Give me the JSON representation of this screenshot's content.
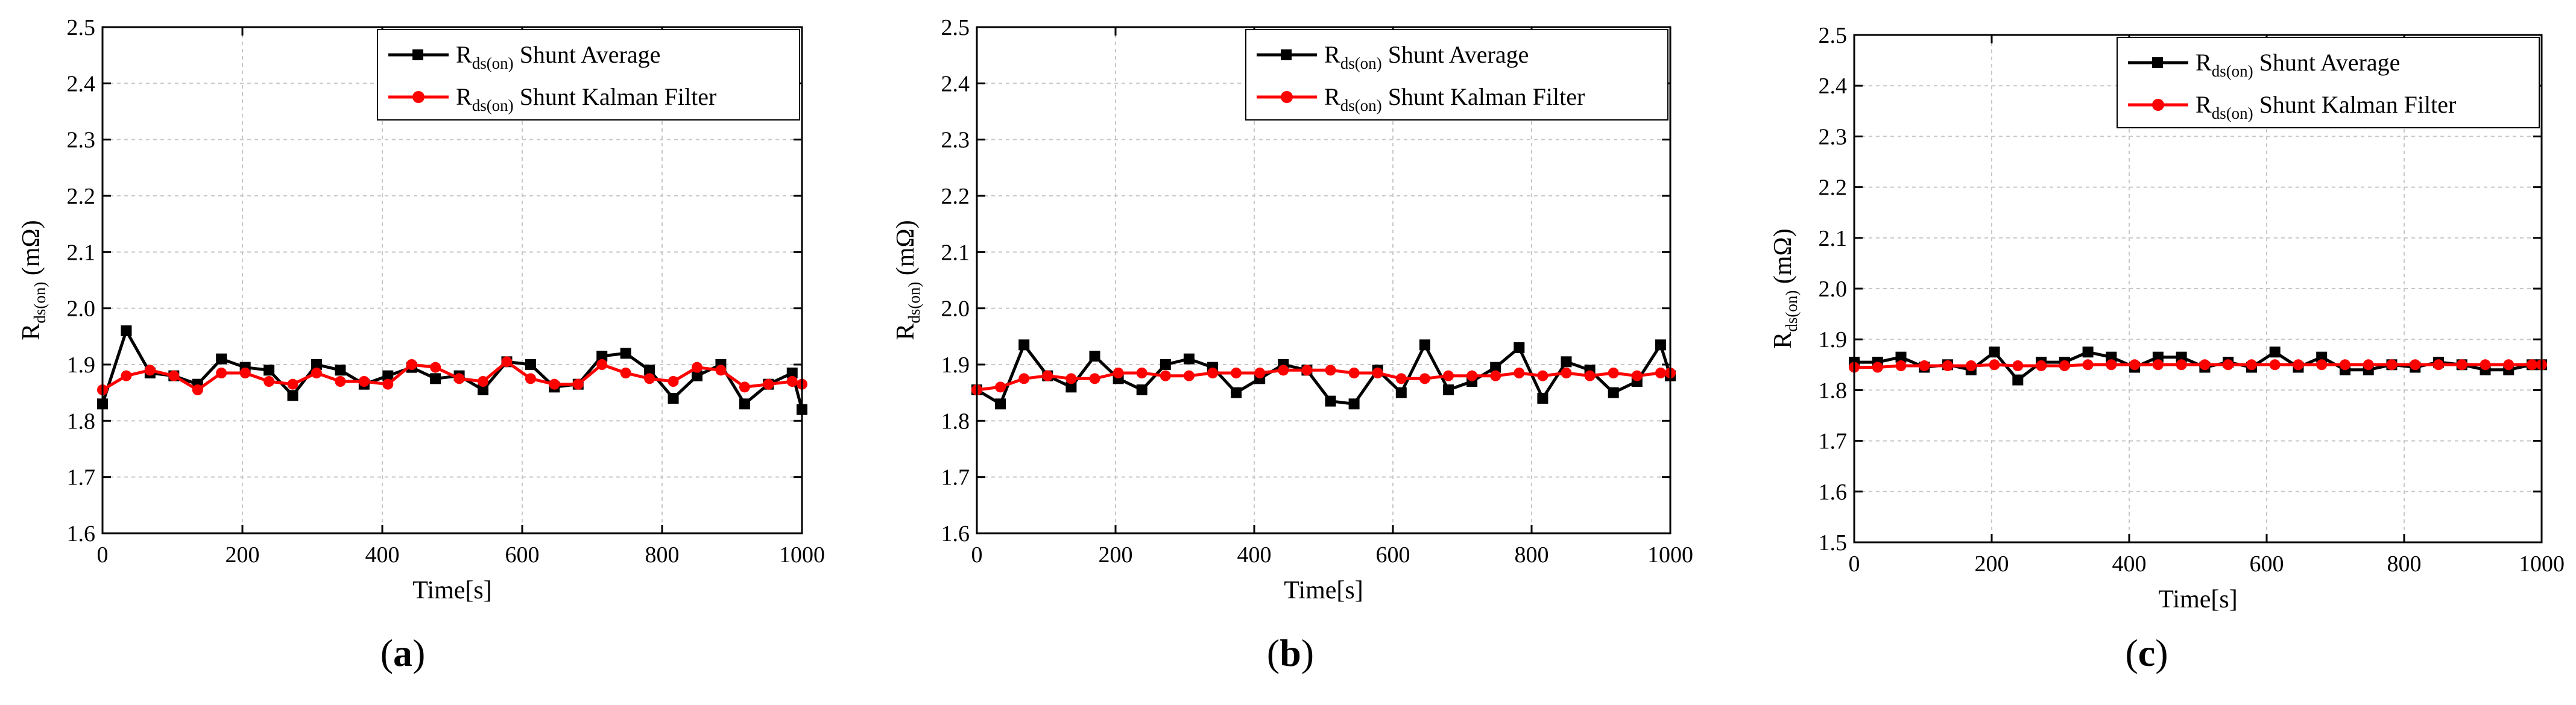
{
  "figure": {
    "colors": {
      "average": "#000000",
      "kalman": "#ff0000",
      "grid": "#c8c8c8"
    },
    "legend": {
      "entries": [
        {
          "symbol": "R",
          "subscript": "ds(on)",
          "text": " Shunt Average",
          "series": "average"
        },
        {
          "symbol": "R",
          "subscript": "ds(on)",
          "text": " Shunt Kalman Filter",
          "series": "kalman"
        }
      ]
    }
  },
  "chart_data": [
    {
      "type": "line",
      "panel_label": "a",
      "title": "",
      "xlabel": "Time[s]",
      "ylabel": {
        "symbol": "R",
        "subscript": "ds(on)",
        "unit": " (mΩ)"
      },
      "xlim": [
        0,
        1000
      ],
      "ylim": [
        1.6,
        2.5
      ],
      "xticks": [
        "0",
        "200",
        "400",
        "600",
        "800",
        "1000"
      ],
      "yticks": [
        "1.6",
        "1.7",
        "1.8",
        "1.9",
        "2.0",
        "2.1",
        "2.2",
        "2.3",
        "2.4",
        "2.5"
      ],
      "grid": true,
      "legend_position": "top-right",
      "series": [
        {
          "name": "Rds(on) Shunt Average",
          "marker": "square",
          "x": [
            0,
            34,
            68,
            102,
            136,
            170,
            204,
            238,
            272,
            306,
            340,
            374,
            408,
            442,
            476,
            510,
            544,
            578,
            612,
            646,
            680,
            714,
            748,
            782,
            816,
            850,
            884,
            918,
            952,
            986,
            1000
          ],
          "y": [
            1.83,
            1.96,
            1.885,
            1.88,
            1.865,
            1.91,
            1.895,
            1.89,
            1.845,
            1.9,
            1.89,
            1.865,
            1.88,
            1.895,
            1.875,
            1.88,
            1.855,
            1.905,
            1.9,
            1.86,
            1.865,
            1.915,
            1.92,
            1.89,
            1.84,
            1.88,
            1.9,
            1.83,
            1.865,
            1.885,
            1.82
          ]
        },
        {
          "name": "Rds(on) Shunt Kalman Filter",
          "marker": "circle",
          "x": [
            0,
            34,
            68,
            102,
            136,
            170,
            204,
            238,
            272,
            306,
            340,
            374,
            408,
            442,
            476,
            510,
            544,
            578,
            612,
            646,
            680,
            714,
            748,
            782,
            816,
            850,
            884,
            918,
            952,
            986,
            1000
          ],
          "y": [
            1.855,
            1.88,
            1.89,
            1.88,
            1.855,
            1.885,
            1.885,
            1.87,
            1.865,
            1.885,
            1.87,
            1.87,
            1.865,
            1.9,
            1.895,
            1.875,
            1.87,
            1.905,
            1.875,
            1.865,
            1.865,
            1.9,
            1.885,
            1.875,
            1.87,
            1.895,
            1.89,
            1.86,
            1.865,
            1.87,
            1.865
          ]
        }
      ]
    },
    {
      "type": "line",
      "panel_label": "b",
      "title": "",
      "xlabel": "Time[s]",
      "ylabel": {
        "symbol": "R",
        "subscript": "ds(on)",
        "unit": " (mΩ)"
      },
      "xlim": [
        0,
        1000
      ],
      "ylim": [
        1.6,
        2.5
      ],
      "xticks": [
        "0",
        "200",
        "400",
        "600",
        "800",
        "1000"
      ],
      "yticks": [
        "1.6",
        "1.7",
        "1.8",
        "1.9",
        "2.0",
        "2.1",
        "2.2",
        "2.3",
        "2.4",
        "2.5"
      ],
      "grid": true,
      "legend_position": "top-right",
      "series": [
        {
          "name": "Rds(on) Shunt Average",
          "marker": "square",
          "x": [
            0,
            34,
            68,
            102,
            136,
            170,
            204,
            238,
            272,
            306,
            340,
            374,
            408,
            442,
            476,
            510,
            544,
            578,
            612,
            646,
            680,
            714,
            748,
            782,
            816,
            850,
            884,
            918,
            952,
            986,
            1000
          ],
          "y": [
            1.855,
            1.83,
            1.935,
            1.88,
            1.86,
            1.915,
            1.875,
            1.855,
            1.9,
            1.91,
            1.895,
            1.85,
            1.875,
            1.9,
            1.89,
            1.835,
            1.83,
            1.89,
            1.85,
            1.935,
            1.855,
            1.87,
            1.895,
            1.93,
            1.84,
            1.905,
            1.89,
            1.85,
            1.87,
            1.935,
            1.88
          ]
        },
        {
          "name": "Rds(on) Shunt Kalman Filter",
          "marker": "circle",
          "x": [
            0,
            34,
            68,
            102,
            136,
            170,
            204,
            238,
            272,
            306,
            340,
            374,
            408,
            442,
            476,
            510,
            544,
            578,
            612,
            646,
            680,
            714,
            748,
            782,
            816,
            850,
            884,
            918,
            952,
            986,
            1000
          ],
          "y": [
            1.855,
            1.86,
            1.875,
            1.88,
            1.875,
            1.875,
            1.885,
            1.885,
            1.88,
            1.88,
            1.885,
            1.885,
            1.885,
            1.89,
            1.89,
            1.89,
            1.885,
            1.885,
            1.875,
            1.875,
            1.88,
            1.88,
            1.88,
            1.885,
            1.88,
            1.885,
            1.88,
            1.885,
            1.88,
            1.885,
            1.885
          ]
        }
      ]
    },
    {
      "type": "line",
      "panel_label": "c",
      "title": "",
      "xlabel": "Time[s]",
      "ylabel": {
        "symbol": "R",
        "subscript": "ds(on)",
        "unit": " (mΩ)"
      },
      "xlim": [
        0,
        1000
      ],
      "ylim": [
        1.5,
        2.5
      ],
      "xticks": [
        "0",
        "200",
        "400",
        "600",
        "800",
        "1000"
      ],
      "yticks": [
        "1.5",
        "1.6",
        "1.7",
        "1.8",
        "1.9",
        "2.0",
        "2.1",
        "2.2",
        "2.3",
        "2.4",
        "2.5"
      ],
      "grid": true,
      "legend_position": "top-right",
      "series": [
        {
          "name": "Rds(on) Shunt Average",
          "marker": "square",
          "x": [
            0,
            34,
            68,
            102,
            136,
            170,
            204,
            238,
            272,
            306,
            340,
            374,
            408,
            442,
            476,
            510,
            544,
            578,
            612,
            646,
            680,
            714,
            748,
            782,
            816,
            850,
            884,
            918,
            952,
            986,
            1000
          ],
          "y": [
            1.855,
            1.855,
            1.865,
            1.845,
            1.85,
            1.84,
            1.875,
            1.82,
            1.855,
            1.855,
            1.875,
            1.865,
            1.845,
            1.865,
            1.865,
            1.845,
            1.855,
            1.845,
            1.875,
            1.845,
            1.865,
            1.84,
            1.84,
            1.85,
            1.845,
            1.855,
            1.85,
            1.84,
            1.84,
            1.85,
            1.85
          ]
        },
        {
          "name": "Rds(on) Shunt Kalman Filter",
          "marker": "circle",
          "x": [
            0,
            34,
            68,
            102,
            136,
            170,
            204,
            238,
            272,
            306,
            340,
            374,
            408,
            442,
            476,
            510,
            544,
            578,
            612,
            646,
            680,
            714,
            748,
            782,
            816,
            850,
            884,
            918,
            952,
            986,
            1000
          ],
          "y": [
            1.845,
            1.845,
            1.848,
            1.848,
            1.848,
            1.848,
            1.85,
            1.848,
            1.848,
            1.848,
            1.85,
            1.85,
            1.85,
            1.85,
            1.85,
            1.85,
            1.85,
            1.85,
            1.85,
            1.85,
            1.85,
            1.85,
            1.85,
            1.85,
            1.85,
            1.85,
            1.85,
            1.85,
            1.85,
            1.85,
            1.85
          ]
        }
      ]
    }
  ]
}
